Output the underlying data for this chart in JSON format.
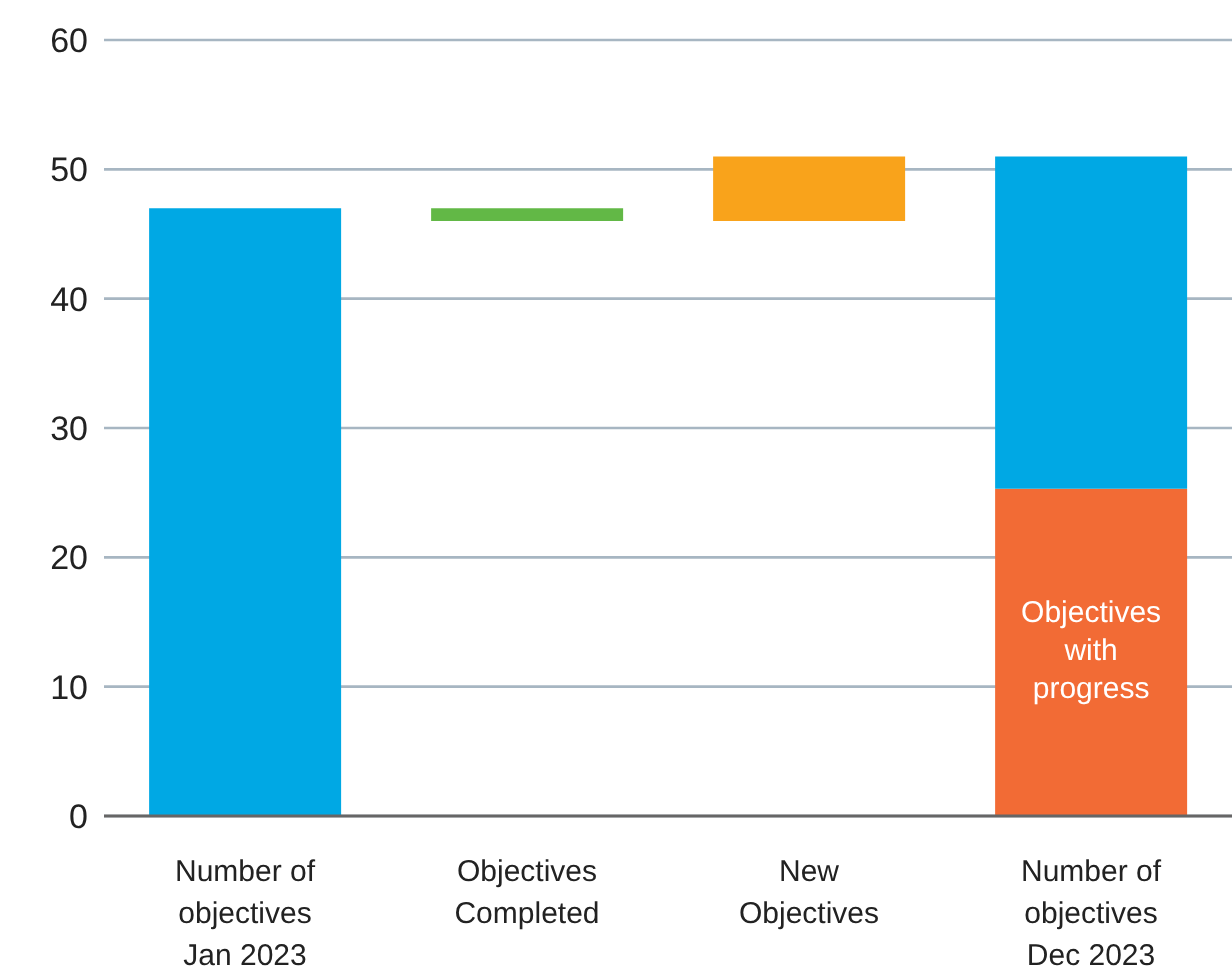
{
  "chart_data": {
    "type": "bar",
    "categories": [
      "Number of objectives Jan 2023",
      "Objectives Completed",
      "New Objectives",
      "Number of objectives Dec 2023"
    ],
    "series": [
      {
        "name": "Objectives with progress",
        "color": "#f26b35",
        "values": [
          null,
          null,
          null,
          25.3
        ]
      },
      {
        "colors": [
          "#00a8e4",
          "#62b846",
          "#f9a31b",
          "#00a8e4"
        ],
        "values": [
          47,
          1,
          5,
          25.7
        ],
        "base": [
          0,
          46,
          46,
          25.3
        ]
      }
    ],
    "ylim": [
      0,
      60
    ],
    "yticks": [
      0,
      10,
      20,
      30,
      40,
      50,
      60
    ],
    "grid": "y",
    "legend": false
  }
}
